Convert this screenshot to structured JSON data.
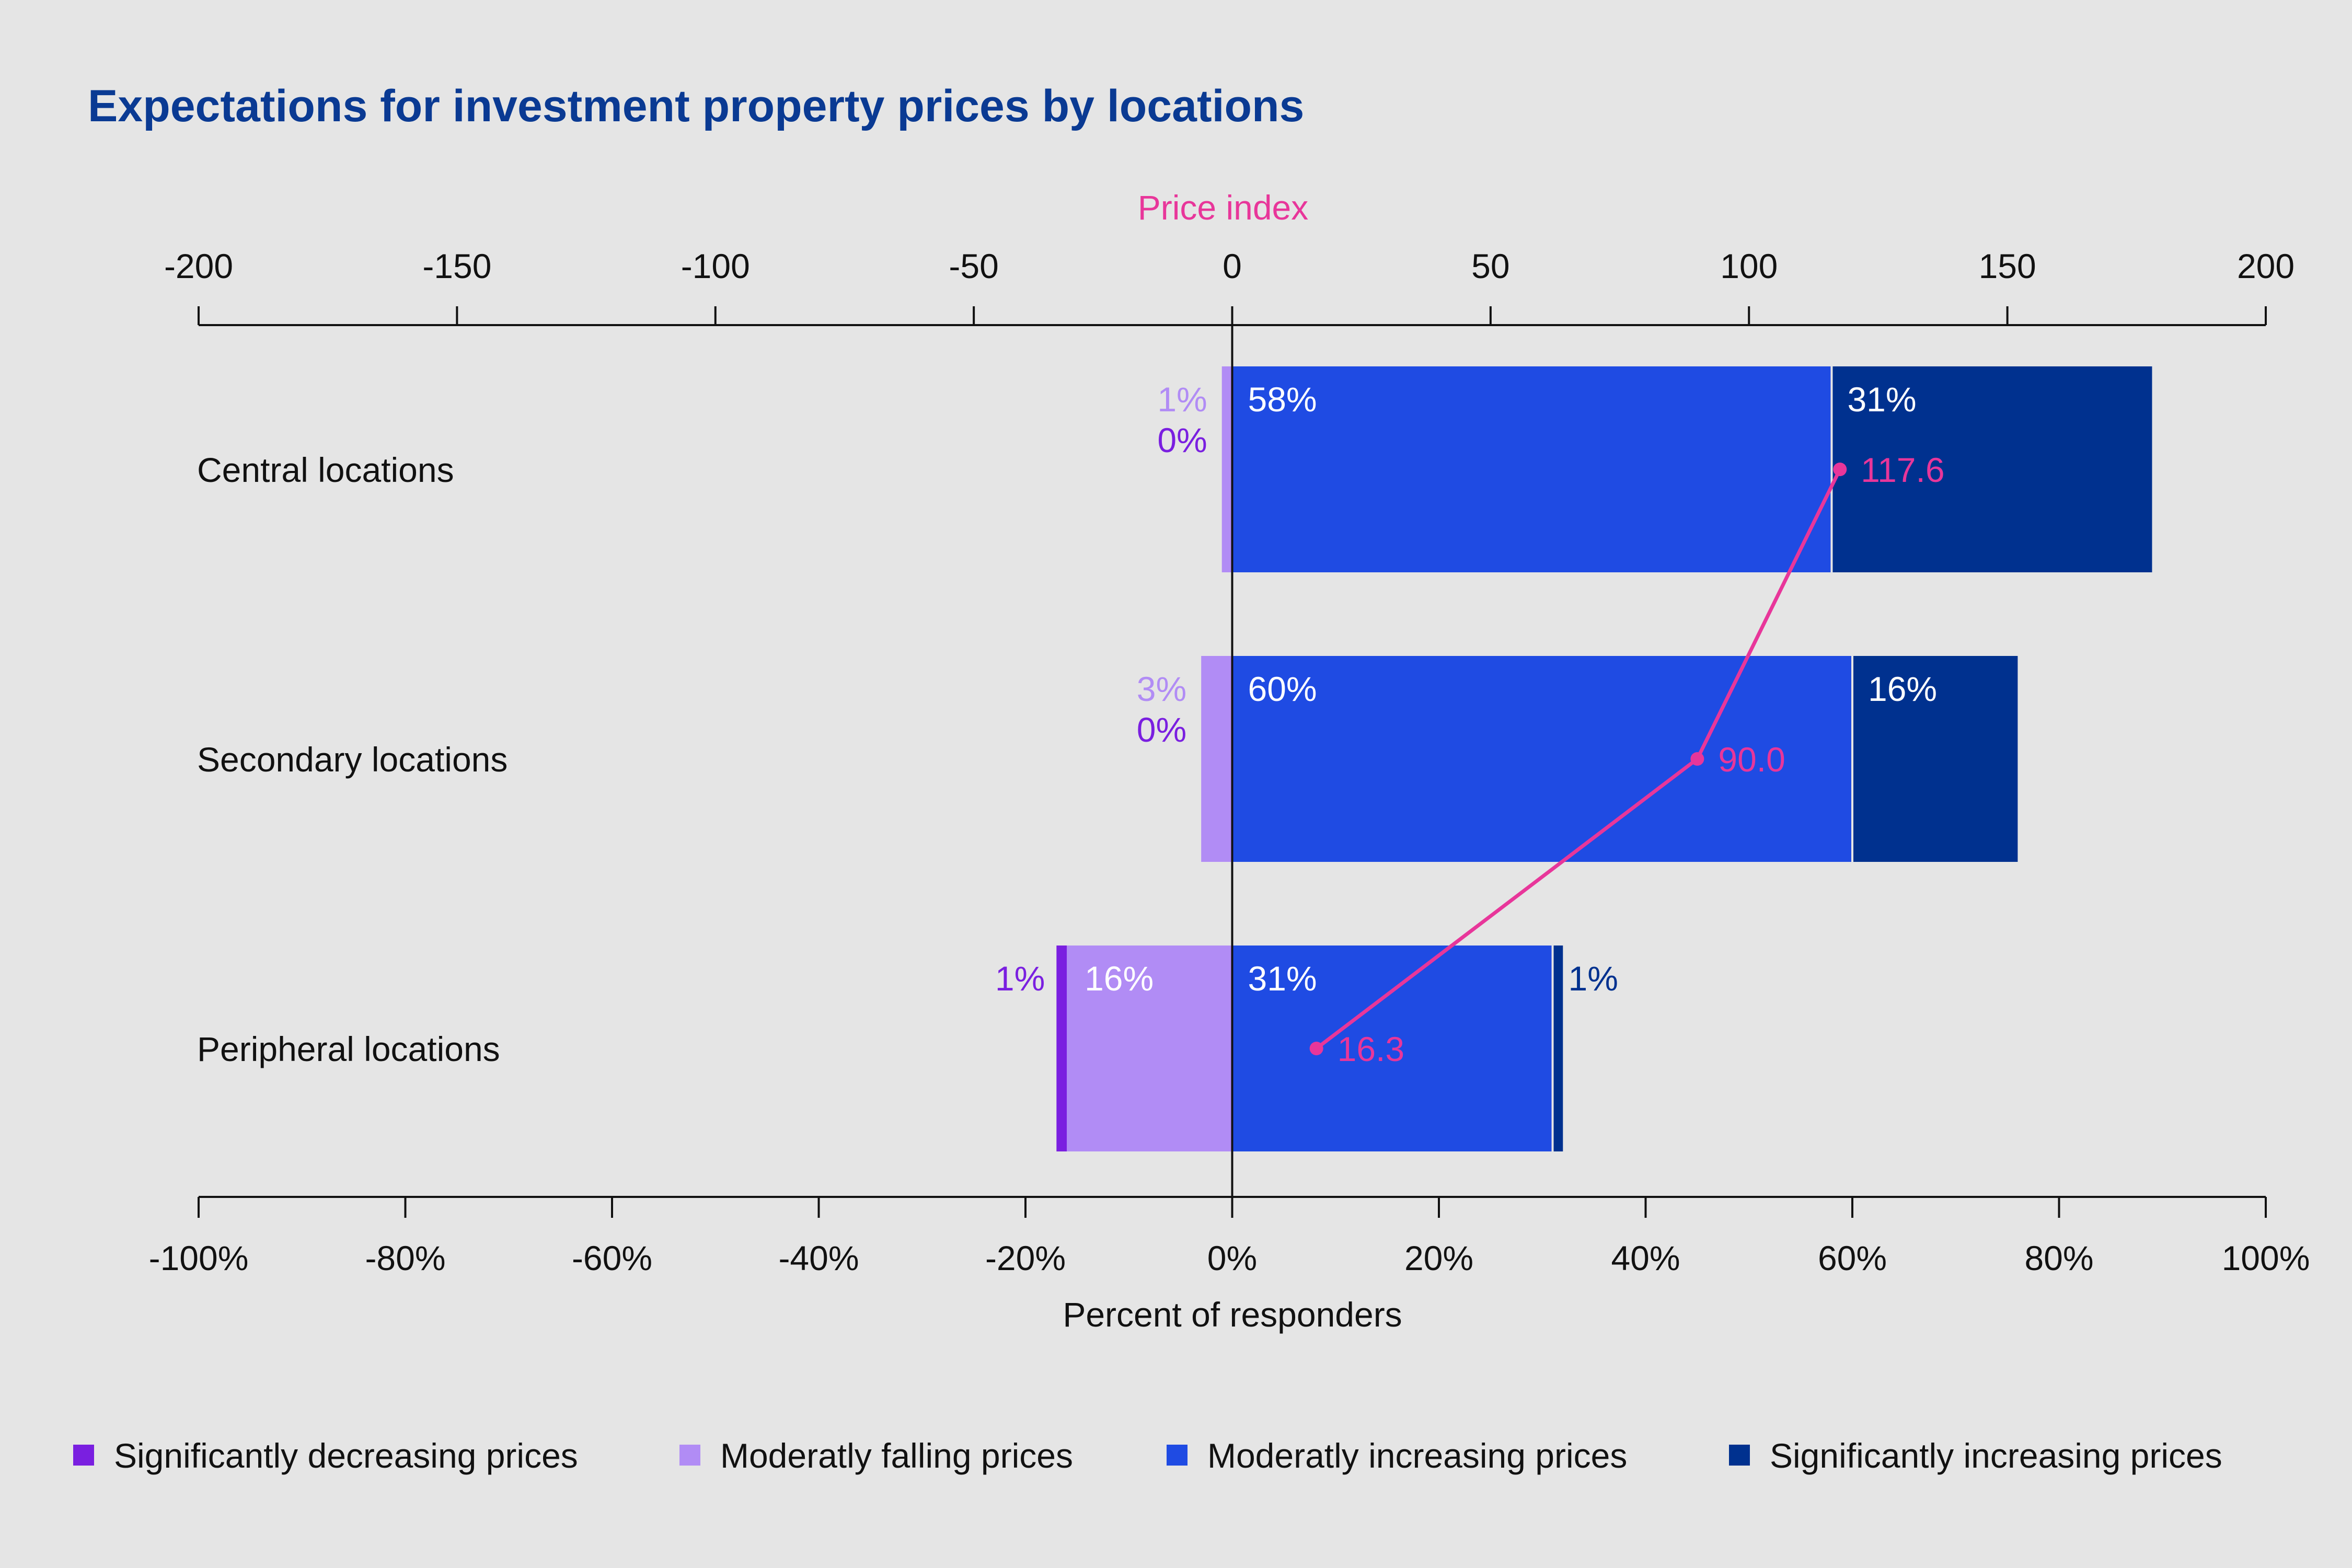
{
  "chart_data": {
    "type": "bar",
    "orientation": "horizontal",
    "stacked": true,
    "title": "Expectations for investment property prices by locations",
    "xlabel": "Percent of responders",
    "xlim": [
      -100,
      100
    ],
    "x_ticks": [
      "-100%",
      "-80%",
      "-60%",
      "-40%",
      "-20%",
      "0%",
      "20%",
      "40%",
      "60%",
      "80%",
      "100%"
    ],
    "secondary_axis": {
      "label": "Price index",
      "lim": [
        -200,
        200
      ],
      "ticks": [
        "-200",
        "-150",
        "-100",
        "-50",
        "0",
        "50",
        "100",
        "150",
        "200"
      ],
      "color": "#e8369a"
    },
    "categories": [
      "Central locations",
      "Secondary locations",
      "Peripheral locations"
    ],
    "series": [
      {
        "name": "Significantly decreasing prices",
        "color": "#7a1fe0",
        "values": [
          0,
          0,
          1
        ],
        "labels": [
          "0%",
          "0%",
          "1%"
        ]
      },
      {
        "name": "Moderatly falling prices",
        "color": "#b18cf5",
        "values": [
          1,
          3,
          16
        ],
        "labels": [
          "1%",
          "3%",
          "16%"
        ]
      },
      {
        "name": "Moderatly increasing prices",
        "color": "#1f4be3",
        "values": [
          58,
          60,
          31
        ],
        "labels": [
          "58%",
          "60%",
          "31%"
        ]
      },
      {
        "name": "Significantly increasing prices",
        "color": "#00318f",
        "values": [
          31,
          16,
          1
        ],
        "labels": [
          "31%",
          "16%",
          "1%"
        ]
      }
    ],
    "price_index": {
      "values": [
        117.6,
        90.0,
        16.3
      ],
      "labels": [
        "117.6",
        "90.0",
        "16.3"
      ]
    },
    "legend_position": "bottom",
    "grid": false
  }
}
